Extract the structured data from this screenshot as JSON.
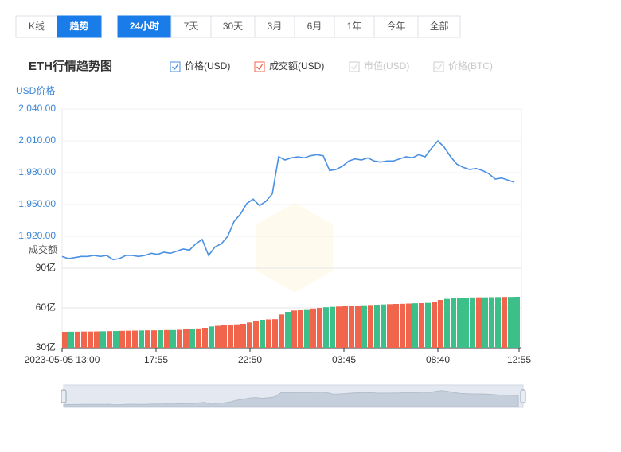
{
  "controls": {
    "view_tabs": [
      "K线",
      "趋势"
    ],
    "view_active": 1,
    "range_tabs": [
      "24小时",
      "7天",
      "30天",
      "3月",
      "6月",
      "1年",
      "今年",
      "全部"
    ],
    "range_active": 0
  },
  "chart_data": [
    {
      "type": "line",
      "title": "ETH行情趋势图",
      "y_label": "USD价格",
      "series": [
        {
          "name": "价格(USD)",
          "color": "#4a90e2",
          "values": [
            1901,
            1899,
            1900,
            1901,
            1901,
            1902,
            1901,
            1902,
            1898,
            1899,
            1902,
            1902,
            1901,
            1902,
            1904,
            1903,
            1905,
            1904,
            1906,
            1908,
            1907,
            1913,
            1917,
            1902,
            1910,
            1913,
            1920,
            1934,
            1941,
            1951,
            1955,
            1949,
            1953,
            1960,
            1995,
            1992,
            1994,
            1995,
            1994,
            1996,
            1997,
            1996,
            1982,
            1983,
            1986,
            1991,
            1993,
            1992,
            1994,
            1991,
            1990,
            1991,
            1991,
            1993,
            1995,
            1994,
            1997,
            1995,
            2003,
            2010,
            2004,
            1995,
            1988,
            1985,
            1983,
            1984,
            1982,
            1979,
            1974,
            1975,
            1973,
            1971
          ]
        }
      ],
      "inactive_legend": [
        "市值(USD)",
        "价格(BTC)"
      ],
      "ylim": [
        1890,
        2040
      ],
      "yticks": [
        {
          "value": 1920,
          "label": "1,920.00"
        },
        {
          "value": 1950,
          "label": "1,950.00"
        },
        {
          "value": 1980,
          "label": "1,980.00"
        },
        {
          "value": 2010,
          "label": "2,010.00"
        },
        {
          "value": 2040,
          "label": "2,040.00"
        }
      ],
      "grid": true
    },
    {
      "type": "bar",
      "y_label": "成交额",
      "series": [
        {
          "name": "成交额(USD)",
          "color": "#f0654c",
          "down_color": "#3dbf8a",
          "values": [
            42.0,
            42.1,
            42.1,
            42.2,
            42.2,
            42.3,
            42.4,
            42.5,
            42.6,
            42.7,
            42.8,
            42.9,
            43.0,
            43.1,
            43.1,
            43.2,
            43.3,
            43.3,
            43.5,
            43.8,
            44.0,
            44.5,
            45.0,
            46.0,
            46.5,
            47.0,
            47.3,
            47.6,
            48.0,
            49.0,
            50.0,
            51.0,
            51.3,
            51.5,
            55.0,
            57.0,
            58.0,
            58.6,
            59.0,
            59.5,
            60.0,
            60.5,
            60.8,
            61.0,
            61.3,
            61.5,
            61.8,
            62.0,
            62.2,
            62.4,
            62.6,
            62.8,
            63.0,
            63.1,
            63.3,
            63.5,
            63.6,
            63.8,
            64.5,
            66.0,
            66.8,
            67.5,
            67.8,
            67.8,
            67.9,
            68.0,
            68.0,
            68.1,
            68.2,
            68.3,
            68.3,
            68.4
          ]
        }
      ],
      "ylim": [
        30,
        90
      ],
      "yticks": [
        {
          "value": 30,
          "label": "30亿"
        },
        {
          "value": 60,
          "label": "60亿"
        },
        {
          "value": 90,
          "label": "90亿"
        }
      ],
      "xlim": [
        0,
        71.75
      ],
      "xticks": [
        {
          "value": 0,
          "label": "2023-05-05 13:00"
        },
        {
          "value": 14.75,
          "label": "17:55"
        },
        {
          "value": 29.5,
          "label": "22:50"
        },
        {
          "value": 44.25,
          "label": "03:45"
        },
        {
          "value": 59,
          "label": "08:40"
        },
        {
          "value": 71.75,
          "label": "12:55"
        }
      ],
      "grid": true
    }
  ]
}
